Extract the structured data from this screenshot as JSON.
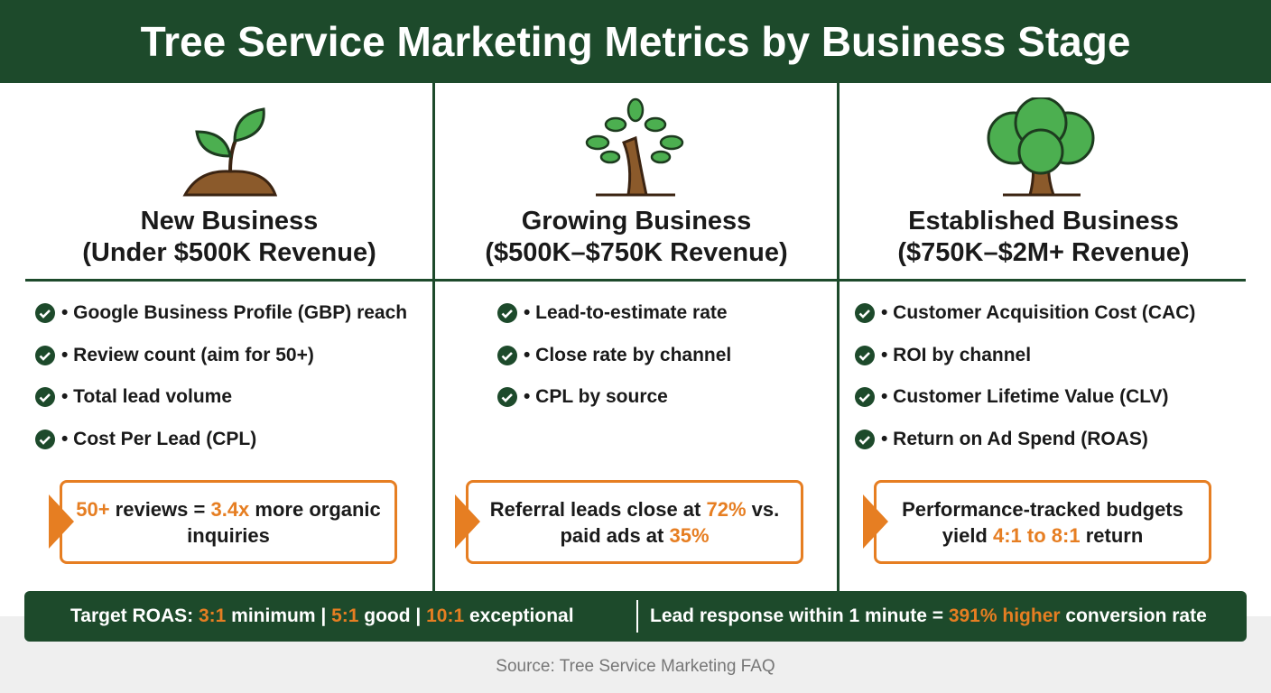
{
  "header": {
    "title": "Tree Service Marketing Metrics by Business Stage"
  },
  "columns": [
    {
      "stage": "New Business",
      "revenue": "(Under $500K Revenue)",
      "metrics": [
        "• Google Business Profile (GBP) reach",
        "• Review count (aim for 50+)",
        "• Total lead volume",
        "• Cost Per Lead (CPL)"
      ],
      "callout": [
        {
          "text": "50+",
          "highlight": true
        },
        {
          "text": " reviews = ",
          "highlight": false
        },
        {
          "text": "3.4x",
          "highlight": true
        },
        {
          "text": " more organic inquiries",
          "highlight": false
        }
      ]
    },
    {
      "stage": "Growing Business",
      "revenue": "($500K–$750K Revenue)",
      "metrics": [
        "• Lead-to-estimate rate",
        "• Close rate by channel",
        "• CPL by source"
      ],
      "callout": [
        {
          "text": "Referral leads close at ",
          "highlight": false
        },
        {
          "text": "72%",
          "highlight": true
        },
        {
          "text": " vs. paid ads at ",
          "highlight": false
        },
        {
          "text": "35%",
          "highlight": true
        }
      ]
    },
    {
      "stage": "Established Business",
      "revenue": "($750K–$2M+ Revenue)",
      "metrics": [
        "• Customer Acquisition Cost (CAC)",
        "• ROI by channel",
        "• Customer Lifetime Value (CLV)",
        "• Return on Ad Spend (ROAS)"
      ],
      "callout": [
        {
          "text": "Performance-tracked budgets yield ",
          "highlight": false
        },
        {
          "text": "4:1 to 8:1",
          "highlight": true
        },
        {
          "text": " return",
          "highlight": false
        }
      ]
    }
  ],
  "footer": {
    "left": [
      {
        "text": "Target ROAS: ",
        "highlight": false
      },
      {
        "text": "3:1",
        "highlight": true
      },
      {
        "text": " minimum | ",
        "highlight": false
      },
      {
        "text": "5:1",
        "highlight": true
      },
      {
        "text": " good | ",
        "highlight": false
      },
      {
        "text": "10:1",
        "highlight": true
      },
      {
        "text": " exceptional",
        "highlight": false
      }
    ],
    "right": [
      {
        "text": "Lead response within 1 minute = ",
        "highlight": false
      },
      {
        "text": "391% higher",
        "highlight": true
      },
      {
        "text": " conversion rate",
        "highlight": false
      }
    ]
  },
  "source": "Source: Tree Service Marketing FAQ"
}
